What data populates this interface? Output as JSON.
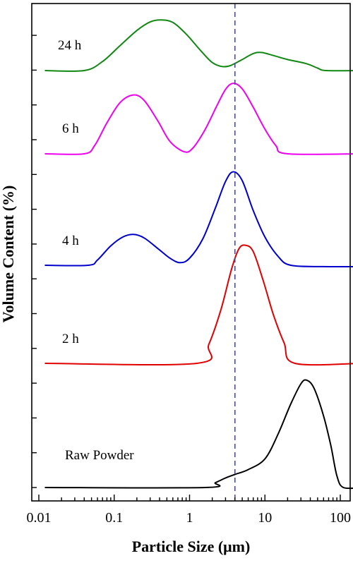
{
  "chart_data": {
    "type": "line",
    "title": "",
    "xlabel": "Particle Size (μm)",
    "ylabel": "Volume Content (%)",
    "xscale": "log",
    "xlim": [
      0.01,
      200
    ],
    "xticks": [
      {
        "value": 0.01,
        "label": "0.01"
      },
      {
        "value": 0.1,
        "label": "0.1"
      },
      {
        "value": 1,
        "label": "1"
      },
      {
        "value": 10,
        "label": "10"
      },
      {
        "value": 100,
        "label": "100"
      }
    ],
    "yticks_labeled": false,
    "reference_line": {
      "x": 4,
      "style": "dashed",
      "color": "#4a4aa0"
    },
    "series": [
      {
        "name": "Raw Powder",
        "color": "#000000",
        "points": [
          [
            0.012,
            0.0
          ],
          [
            1.6,
            0.0
          ],
          [
            2.2,
            0.4
          ],
          [
            3.0,
            0.8
          ],
          [
            4.0,
            1.1
          ],
          [
            6.0,
            1.5
          ],
          [
            10,
            2.4
          ],
          [
            15,
            4.5
          ],
          [
            22,
            7.0
          ],
          [
            30,
            8.7
          ],
          [
            36,
            9.0
          ],
          [
            45,
            8.3
          ],
          [
            60,
            6.0
          ],
          [
            75,
            3.5
          ],
          [
            90,
            1.0
          ],
          [
            110,
            0.0
          ],
          [
            190,
            0.0
          ]
        ]
      },
      {
        "name": "2 h",
        "color": "#e00000",
        "points": [
          [
            0.012,
            0.0
          ],
          [
            1.25,
            0.0
          ],
          [
            1.8,
            1.5
          ],
          [
            2.6,
            4.2
          ],
          [
            3.6,
            7.4
          ],
          [
            4.5,
            9.0
          ],
          [
            5.5,
            9.3
          ],
          [
            7.0,
            8.8
          ],
          [
            9.5,
            6.5
          ],
          [
            13,
            3.8
          ],
          [
            18,
            1.6
          ],
          [
            25,
            0.0
          ],
          [
            190,
            0.0
          ]
        ]
      },
      {
        "name": "4 h",
        "color": "#0000cc",
        "points": [
          [
            0.012,
            0.0
          ],
          [
            0.045,
            0.0
          ],
          [
            0.06,
            0.6
          ],
          [
            0.09,
            2.2
          ],
          [
            0.13,
            3.2
          ],
          [
            0.18,
            3.5
          ],
          [
            0.25,
            3.1
          ],
          [
            0.38,
            1.9
          ],
          [
            0.55,
            0.8
          ],
          [
            0.75,
            0.3
          ],
          [
            1.0,
            0.8
          ],
          [
            1.5,
            3.0
          ],
          [
            2.2,
            6.5
          ],
          [
            3.0,
            9.5
          ],
          [
            3.8,
            10.6
          ],
          [
            5.0,
            9.6
          ],
          [
            7.0,
            6.2
          ],
          [
            10,
            3.2
          ],
          [
            15,
            1.0
          ],
          [
            22,
            0.0
          ],
          [
            60,
            -0.15
          ],
          [
            190,
            -0.15
          ]
        ]
      },
      {
        "name": "6 h",
        "color": "#ee00ee",
        "points": [
          [
            0.012,
            0.0
          ],
          [
            0.04,
            0.0
          ],
          [
            0.055,
            1.2
          ],
          [
            0.08,
            4.5
          ],
          [
            0.12,
            7.5
          ],
          [
            0.18,
            8.6
          ],
          [
            0.25,
            7.8
          ],
          [
            0.38,
            4.8
          ],
          [
            0.55,
            1.8
          ],
          [
            0.85,
            0.3
          ],
          [
            1.1,
            0.8
          ],
          [
            1.6,
            3.5
          ],
          [
            2.3,
            7.0
          ],
          [
            3.0,
            9.4
          ],
          [
            3.8,
            10.3
          ],
          [
            5.0,
            9.5
          ],
          [
            7.0,
            6.8
          ],
          [
            10,
            3.6
          ],
          [
            14,
            1.2
          ],
          [
            20,
            0.0
          ],
          [
            190,
            0.0
          ]
        ]
      },
      {
        "name": "24 h",
        "color": "#118811",
        "points": [
          [
            0.012,
            0.0
          ],
          [
            0.04,
            0.0
          ],
          [
            0.07,
            1.8
          ],
          [
            0.12,
            5.0
          ],
          [
            0.2,
            8.0
          ],
          [
            0.3,
            9.7
          ],
          [
            0.42,
            10.1
          ],
          [
            0.6,
            9.6
          ],
          [
            0.9,
            7.3
          ],
          [
            1.4,
            4.0
          ],
          [
            2.0,
            1.6
          ],
          [
            2.7,
            0.8
          ],
          [
            3.5,
            1.0
          ],
          [
            5.0,
            2.2
          ],
          [
            7.0,
            3.4
          ],
          [
            9.0,
            3.6
          ],
          [
            13,
            3.0
          ],
          [
            20,
            2.2
          ],
          [
            35,
            1.4
          ],
          [
            50,
            0.5
          ],
          [
            65,
            0.0
          ],
          [
            190,
            0.0
          ]
        ]
      }
    ]
  }
}
